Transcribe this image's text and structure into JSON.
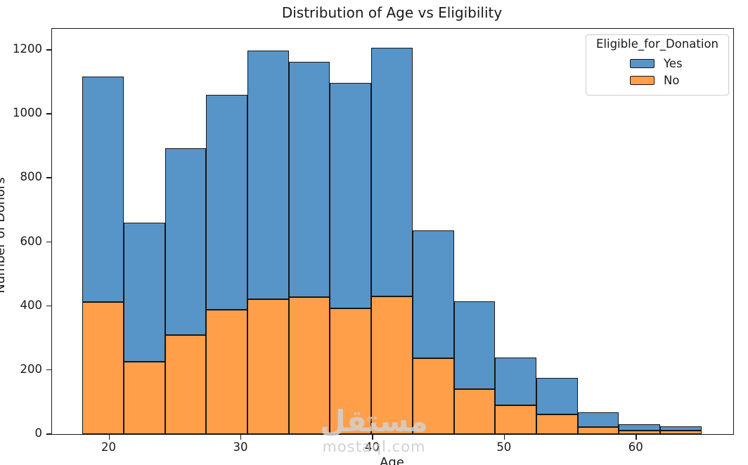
{
  "chart_data": {
    "type": "bar",
    "subtype": "stacked-histogram",
    "title": "Distribution of Age vs Eligibility",
    "xlabel": "Age",
    "ylabel": "Number of Donors",
    "bin_edges": [
      18,
      21.13,
      24.27,
      27.4,
      30.53,
      33.67,
      36.8,
      39.93,
      43.07,
      46.2,
      49.33,
      52.47,
      55.6,
      58.73,
      61.87,
      65
    ],
    "series": [
      {
        "name": "Yes",
        "color": "#5795c8",
        "values": [
          704,
          435,
          583,
          672,
          777,
          736,
          705,
          778,
          401,
          274,
          151,
          114,
          48,
          21,
          12
        ]
      },
      {
        "name": "No",
        "color": "#ff9f4a",
        "values": [
          413,
          225,
          309,
          388,
          421,
          427,
          392,
          429,
          236,
          141,
          89,
          62,
          21,
          10,
          12
        ]
      }
    ],
    "stack_totals": [
      1117,
      660,
      892,
      1060,
      1198,
      1163,
      1097,
      1207,
      637,
      415,
      240,
      176,
      69,
      31,
      24
    ],
    "stack_order_bottom_to_top": [
      "No",
      "Yes"
    ],
    "bar_edge_color": "#161616",
    "xlim": [
      15.65,
      67.35
    ],
    "ylim": [
      0,
      1266
    ],
    "x_ticks": [
      20,
      30,
      40,
      50,
      60
    ],
    "y_ticks": [
      0,
      200,
      400,
      600,
      800,
      1000,
      1200
    ],
    "grid": false,
    "legend": {
      "title": "Eligible_for_Donation",
      "position": "upper right",
      "entries": [
        {
          "label": "Yes",
          "color": "#5795c8"
        },
        {
          "label": "No",
          "color": "#ff9f4a"
        }
      ]
    }
  },
  "watermark": {
    "brand_arabic": "مستقل",
    "registered_mark": "®",
    "brand_url": "mostaql.com"
  }
}
